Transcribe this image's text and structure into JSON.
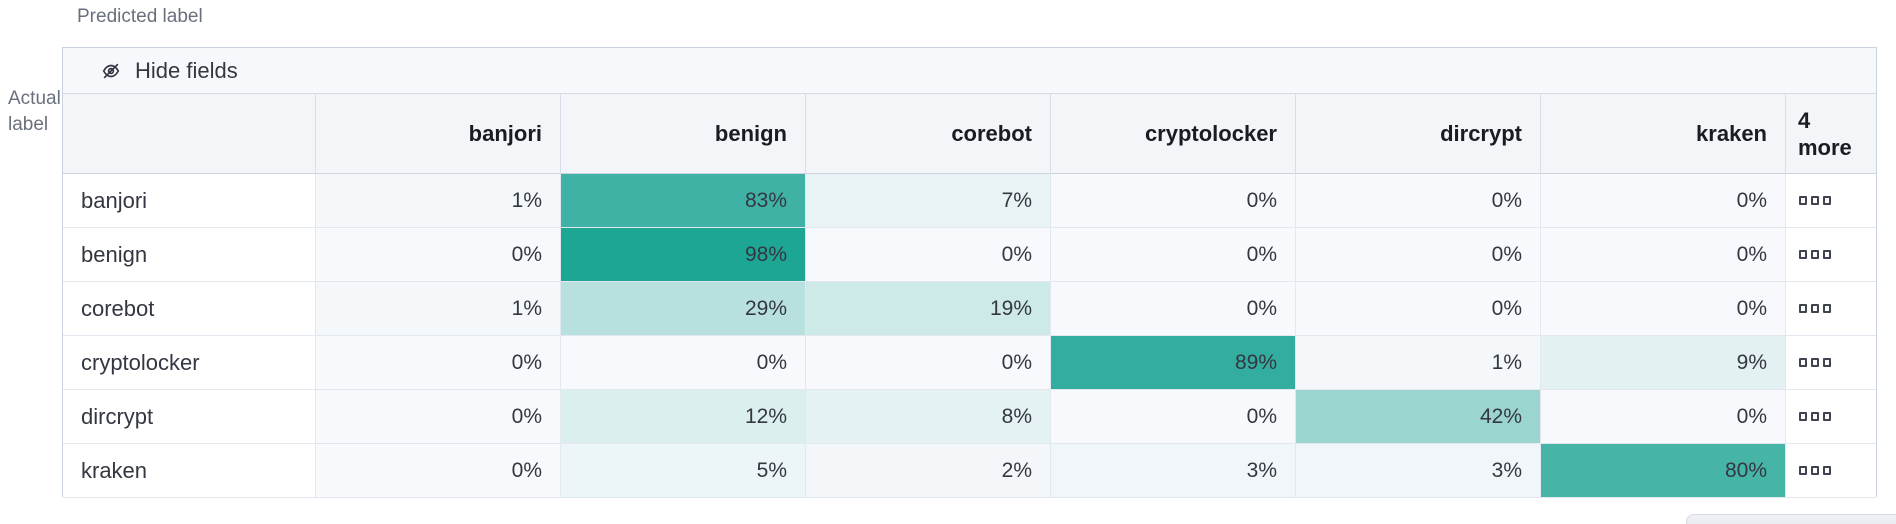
{
  "axes": {
    "predicted": "Predicted label",
    "actual_lines": [
      "Actual",
      "label"
    ]
  },
  "toolbar": {
    "hide_fields": "Hide fields"
  },
  "icons": {
    "toolbar_icon": "eye-closed-icon",
    "row_overflow_icon": "boxes-horizontal-icon"
  },
  "chart_data": {
    "type": "heatmap",
    "subtype": "confusion-matrix",
    "columns": [
      "banjori",
      "benign",
      "corebot",
      "cryptolocker",
      "dircrypt",
      "kraken"
    ],
    "overflow_column": {
      "count": "4",
      "word": "more"
    },
    "rows": [
      {
        "label": "banjori",
        "values": [
          1,
          83,
          7,
          0,
          0,
          0
        ]
      },
      {
        "label": "benign",
        "values": [
          0,
          98,
          0,
          0,
          0,
          0
        ]
      },
      {
        "label": "corebot",
        "values": [
          1,
          29,
          19,
          0,
          0,
          0
        ]
      },
      {
        "label": "cryptolocker",
        "values": [
          0,
          0,
          0,
          89,
          1,
          9
        ]
      },
      {
        "label": "dircrypt",
        "values": [
          0,
          12,
          8,
          0,
          42,
          0
        ]
      },
      {
        "label": "kraken",
        "values": [
          0,
          5,
          2,
          3,
          3,
          80
        ]
      }
    ],
    "unit": "%",
    "value_range": [
      0,
      100
    ],
    "heatmap_scale": {
      "start": "#f7f9fc",
      "end": "#1aa493"
    }
  }
}
